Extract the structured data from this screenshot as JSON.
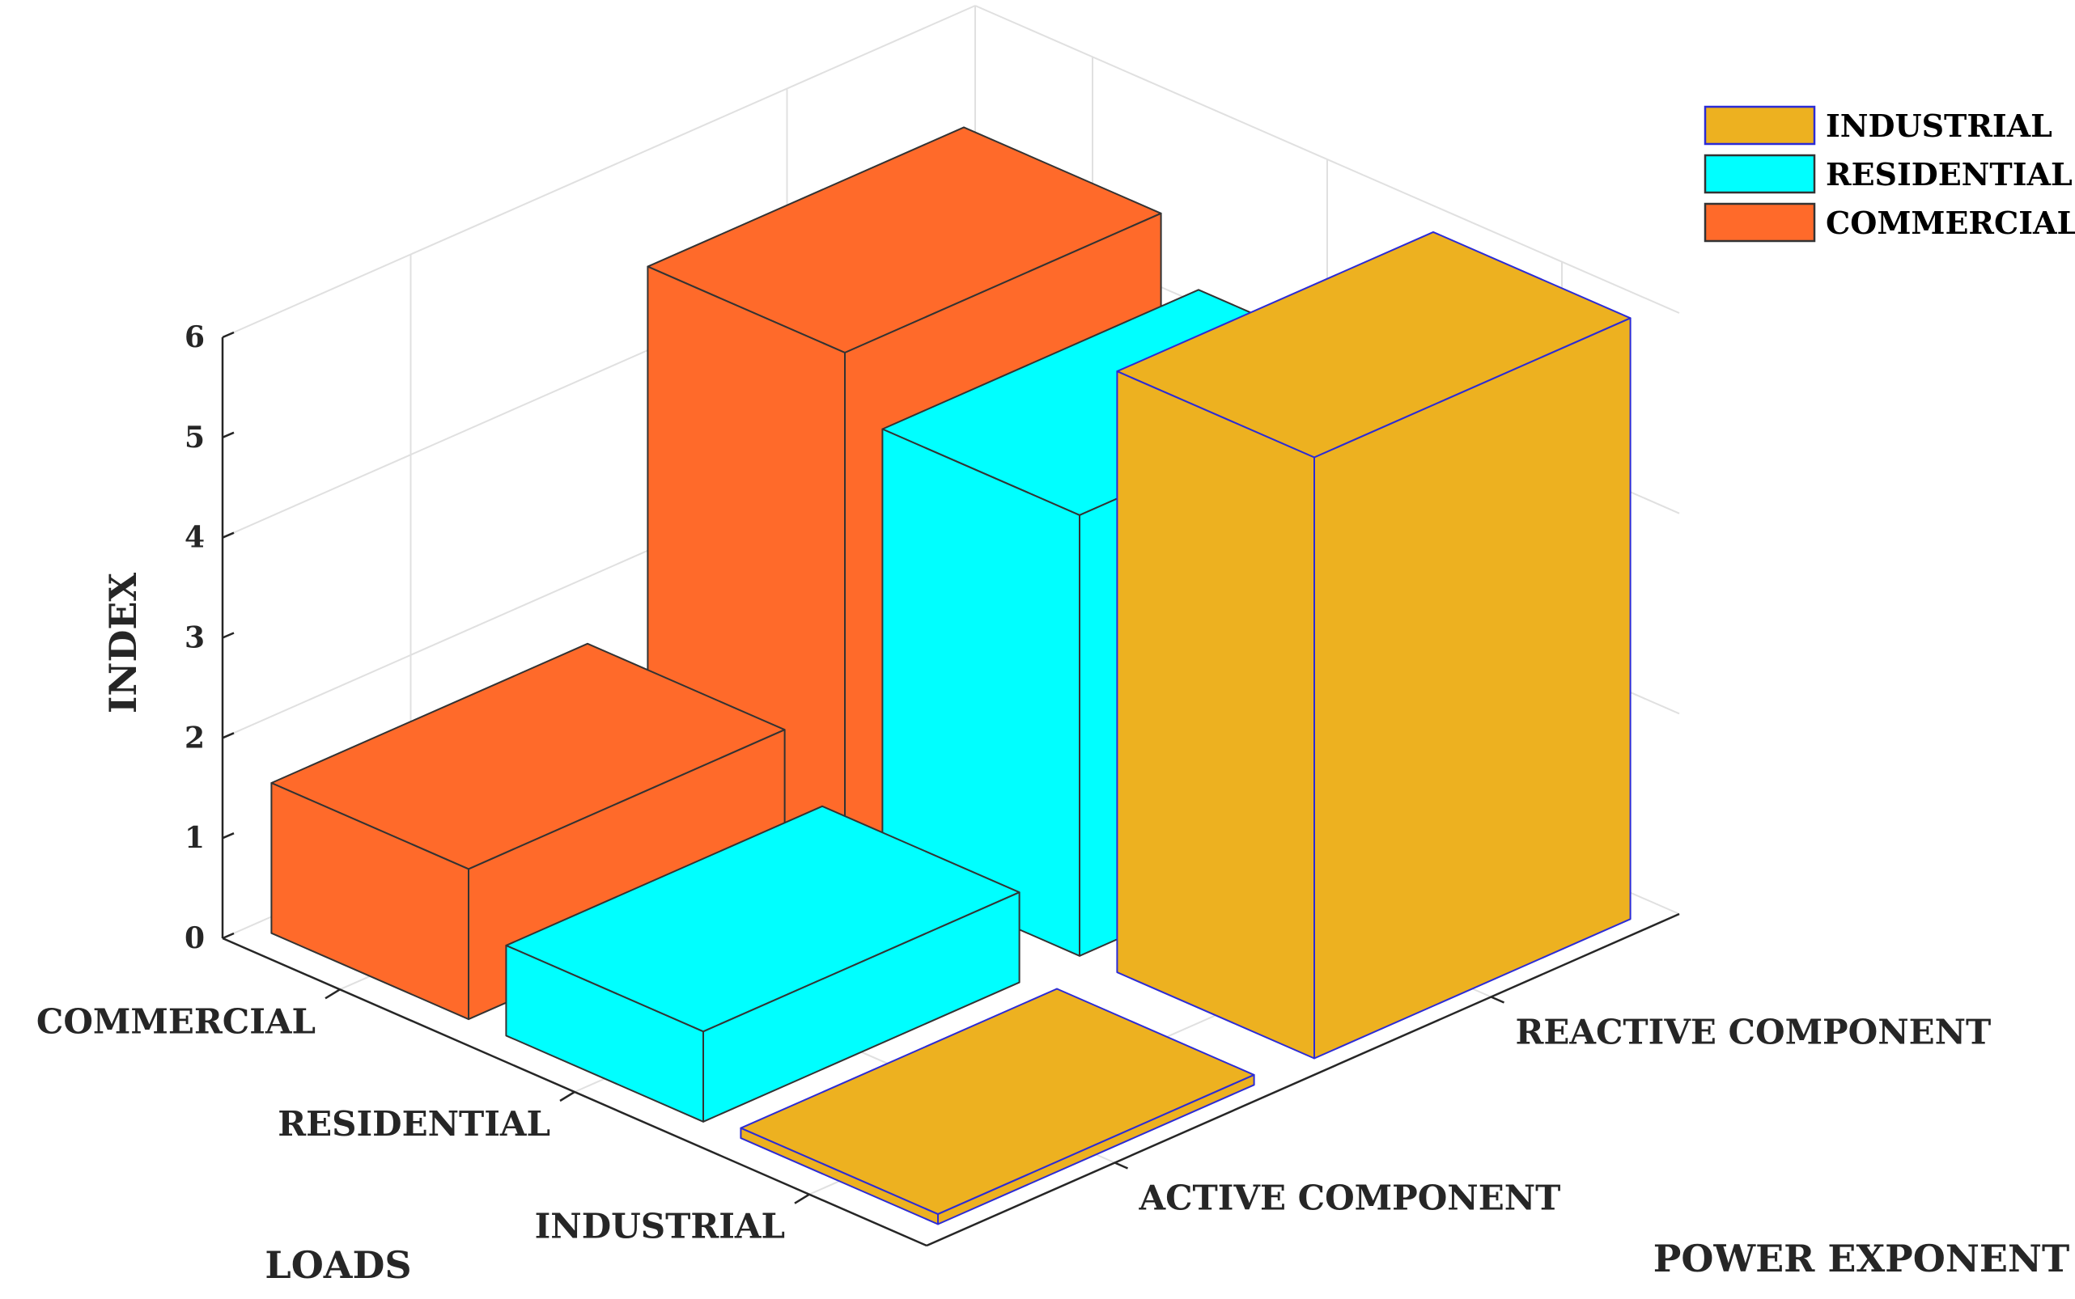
{
  "chart_data": {
    "type": "bar3d",
    "title": "",
    "zlabel": "INDEX",
    "xlabel": "LOADS",
    "ylabel": "POWER EXPONENT",
    "loads": [
      "COMMERCIAL",
      "RESIDENTIAL",
      "INDUSTRIAL"
    ],
    "components": [
      "ACTIVE COMPONENT",
      "REACTIVE COMPONENT"
    ],
    "zlim": [
      0,
      6
    ],
    "zticks": [
      "0",
      "1",
      "2",
      "3",
      "4",
      "5",
      "6"
    ],
    "grid": true,
    "legend_position": "top-right",
    "series": [
      {
        "name": "COMMERCIAL",
        "color": "#FF6A2A",
        "values": [
          1.5,
          5.0
        ]
      },
      {
        "name": "RESIDENTIAL",
        "color": "#00FFFF",
        "values": [
          0.9,
          4.4
        ]
      },
      {
        "name": "INDUSTRIAL",
        "color": "#EDB120",
        "values": [
          0.1,
          6.0
        ]
      }
    ],
    "legend": [
      "INDUSTRIAL",
      "RESIDENTIAL",
      "COMMERCIAL"
    ]
  }
}
